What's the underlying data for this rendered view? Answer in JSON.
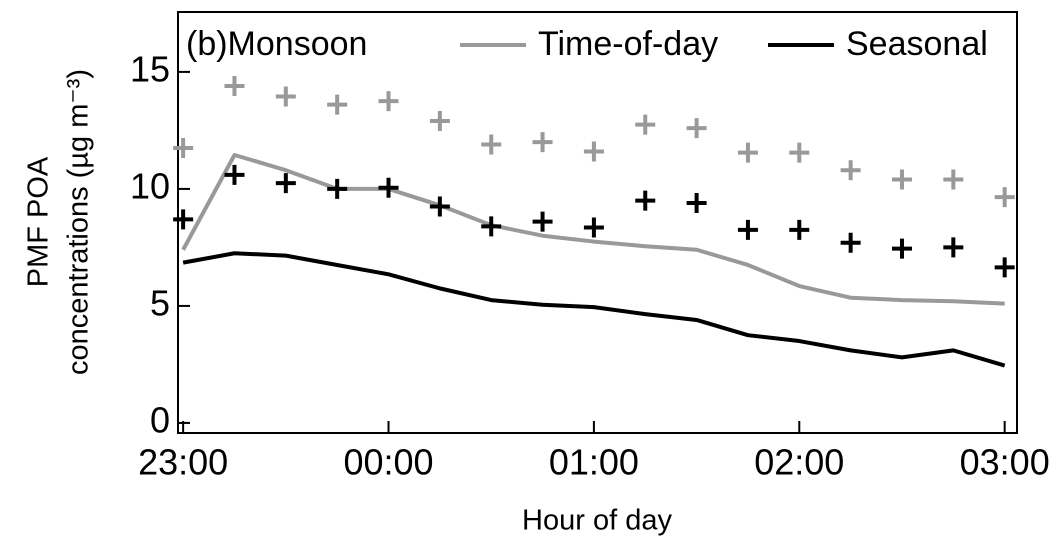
{
  "chart_data": {
    "type": "line",
    "annotation": "(b)Monsoon",
    "xlabel": "Hour of day",
    "ylabel": [
      "PMF POA",
      "concentrations (µg m⁻³)"
    ],
    "x": [
      0,
      0.25,
      0.5,
      0.75,
      1,
      1.25,
      1.5,
      1.75,
      2,
      2.25,
      2.5,
      2.75,
      3,
      3.25,
      3.5,
      3.75,
      4
    ],
    "xlim": [
      -0.025,
      4.06
    ],
    "xticks": [
      {
        "value": 0,
        "label": "23:00"
      },
      {
        "value": 1,
        "label": "00:00"
      },
      {
        "value": 2,
        "label": "01:00"
      },
      {
        "value": 3,
        "label": "02:00"
      },
      {
        "value": 4,
        "label": "03:00"
      }
    ],
    "ylim": [
      -0.43,
      17.56
    ],
    "yticks": [
      0,
      5,
      10,
      15
    ],
    "legend": "top",
    "series": [
      {
        "name": "Time-of-day",
        "color": "#999999",
        "style": "line",
        "values": [
          7.4,
          11.45,
          10.8,
          10.0,
          10.0,
          9.3,
          8.45,
          8.0,
          7.75,
          7.55,
          7.4,
          6.75,
          5.85,
          5.35,
          5.25,
          5.2,
          5.1
        ]
      },
      {
        "name": "Seasonal",
        "color": "#000000",
        "style": "line",
        "values": [
          6.85,
          7.25,
          7.15,
          6.75,
          6.35,
          5.75,
          5.25,
          5.05,
          4.95,
          4.65,
          4.4,
          3.75,
          3.5,
          3.1,
          2.8,
          3.1,
          2.45
        ]
      },
      {
        "color": "#999999",
        "style": "marker",
        "values": [
          11.75,
          14.4,
          13.95,
          13.6,
          13.75,
          12.9,
          11.9,
          12.0,
          11.6,
          12.75,
          12.6,
          11.55,
          11.55,
          10.8,
          10.4,
          10.4,
          9.65
        ]
      },
      {
        "color": "#000000",
        "style": "marker",
        "values": [
          8.7,
          10.6,
          10.25,
          10.0,
          10.05,
          9.25,
          8.4,
          8.6,
          8.35,
          9.5,
          9.4,
          8.25,
          8.25,
          7.7,
          7.45,
          7.5,
          6.65
        ]
      }
    ]
  }
}
